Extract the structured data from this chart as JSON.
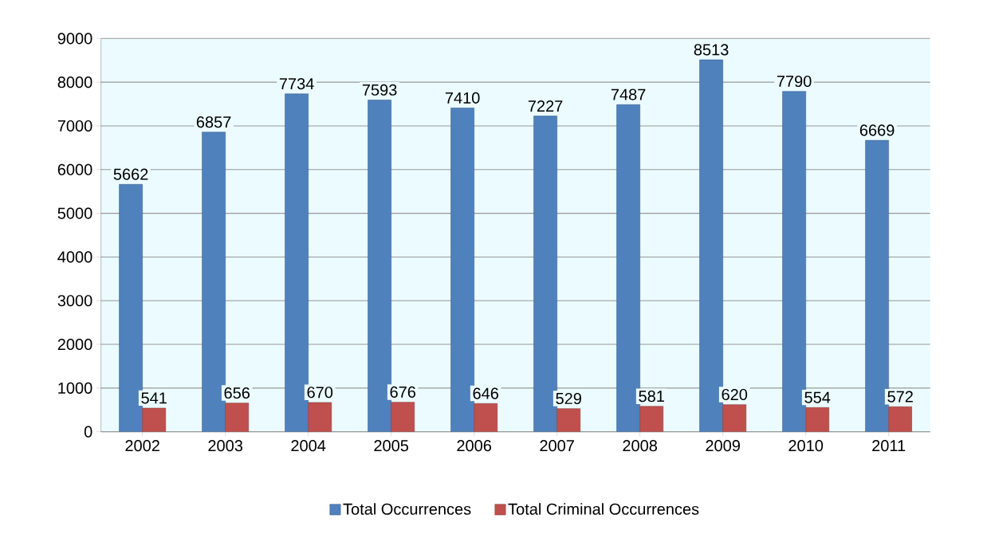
{
  "chart_data": {
    "type": "bar",
    "categories": [
      "2002",
      "2003",
      "2004",
      "2005",
      "2006",
      "2007",
      "2008",
      "2009",
      "2010",
      "2011"
    ],
    "series": [
      {
        "name": "Total Occurrences",
        "color": "#4f81bd",
        "values": [
          5662,
          6857,
          7734,
          7593,
          7410,
          7227,
          7487,
          8513,
          7790,
          6669
        ]
      },
      {
        "name": "Total Criminal Occurrences",
        "color": "#c0504d",
        "values": [
          541,
          656,
          670,
          676,
          646,
          529,
          581,
          620,
          554,
          572
        ]
      }
    ],
    "ylim": [
      0,
      9000
    ],
    "yticks": [
      0,
      1000,
      2000,
      3000,
      4000,
      5000,
      6000,
      7000,
      8000,
      9000
    ],
    "grid": "y",
    "legend": "bottom",
    "data_labels": true
  }
}
